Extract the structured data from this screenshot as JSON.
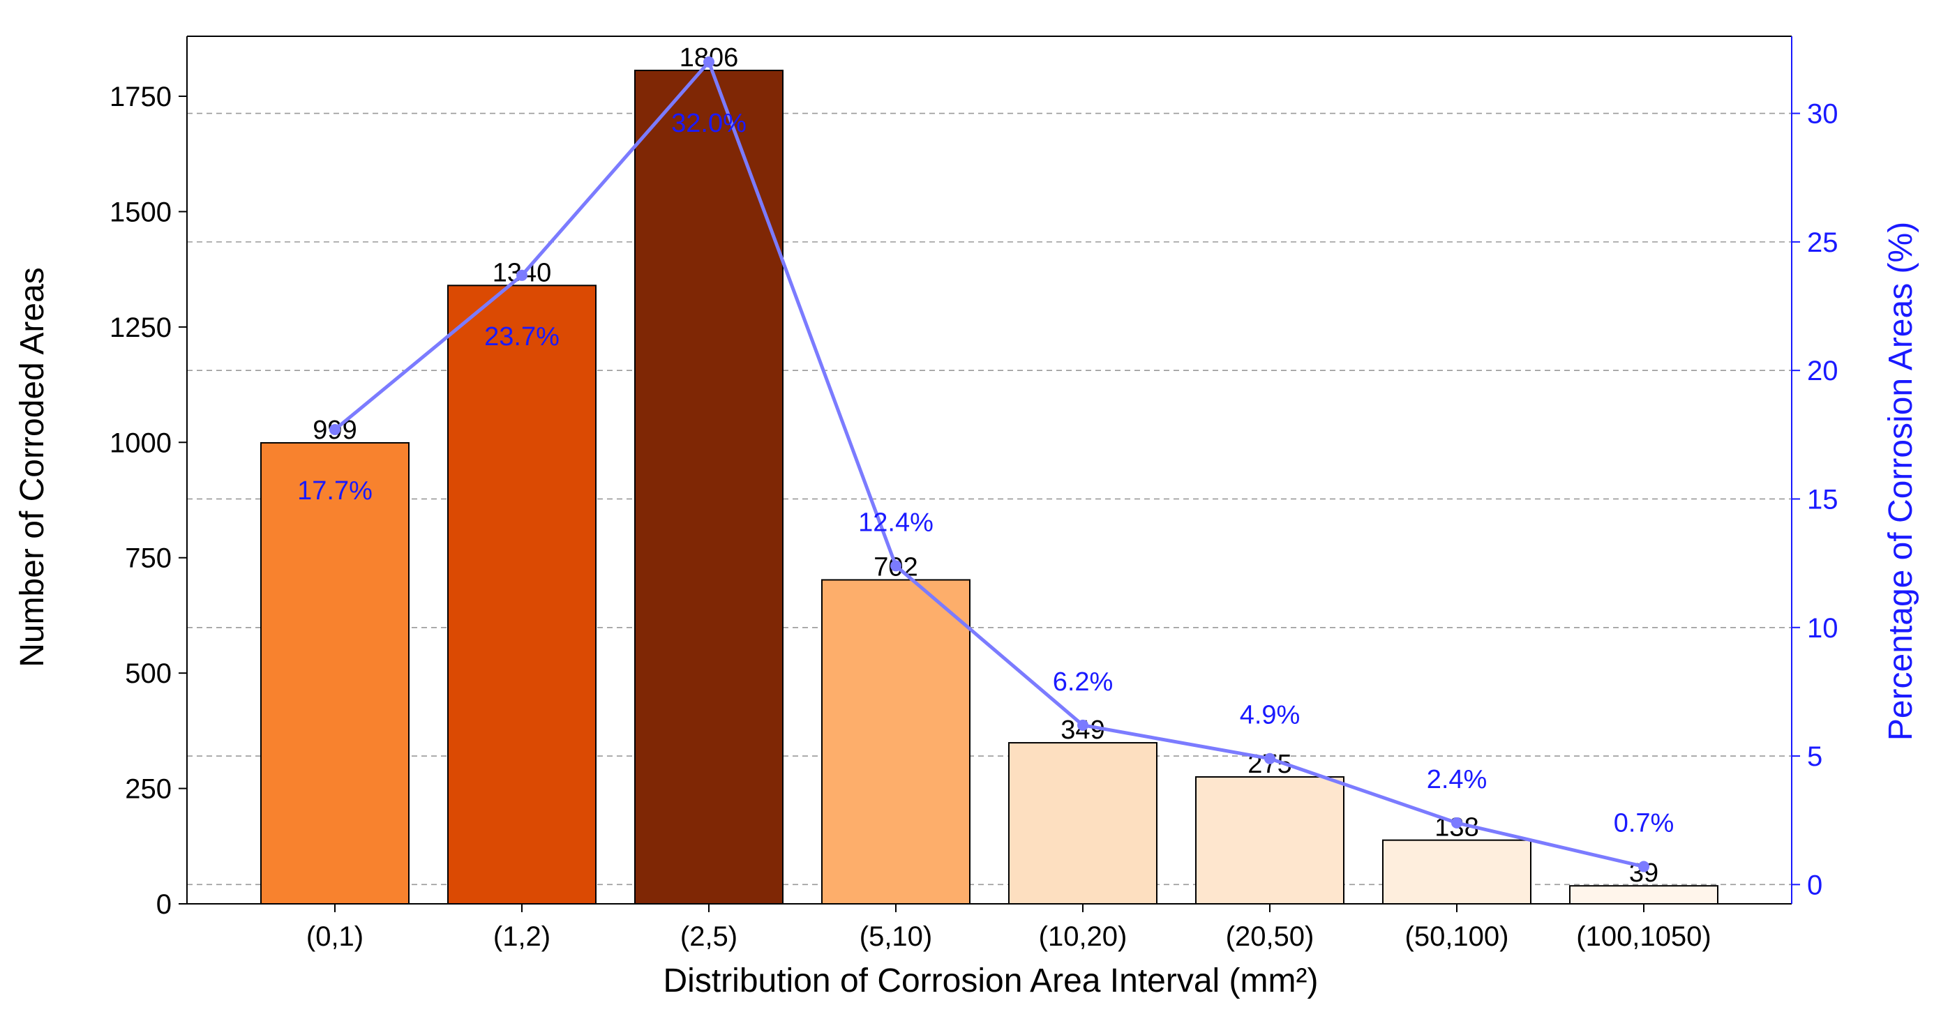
{
  "chart_data": {
    "type": "bar",
    "title": "",
    "xlabel": "Distribution of Corrosion Area Interval (mm²)",
    "ylabel": "Number of Corroded Areas",
    "y2label": "Percentage of Corrosion Areas (%)",
    "categories": [
      "(0,1)",
      "(1,2)",
      "(2,5)",
      "(5,10)",
      "(10,20)",
      "(20,50)",
      "(50,100)",
      "(100,1050)"
    ],
    "series": [
      {
        "name": "Number of Corroded Areas",
        "type": "bar",
        "axis": "left",
        "values": [
          999,
          1340,
          1806,
          702,
          349,
          275,
          138,
          39
        ],
        "value_labels": [
          "999",
          "1340",
          "1806",
          "702",
          "349",
          "275",
          "138",
          "39"
        ],
        "colors": [
          "#F8822E",
          "#DB4A03",
          "#7F2705",
          "#FDAE6B",
          "#FDDFC0",
          "#FEE6CE",
          "#FEEEDD",
          "#FFF5EB"
        ]
      },
      {
        "name": "Percentage of Corrosion Areas",
        "type": "line",
        "axis": "right",
        "values": [
          17.7,
          23.7,
          32.0,
          12.4,
          6.2,
          4.9,
          2.4,
          0.7
        ],
        "value_labels": [
          "17.7%",
          "23.7%",
          "32.0%",
          "12.4%",
          "6.2%",
          "4.9%",
          "2.4%",
          "0.7%"
        ],
        "color": "#7B7BFF",
        "label_color": "#1A1AFF"
      }
    ],
    "ylim": [
      0,
      1880
    ],
    "y2lim": [
      -0.75,
      33
    ],
    "yticks": [
      0,
      250,
      500,
      750,
      1000,
      1250,
      1500,
      1750
    ],
    "y2ticks": [
      0,
      5,
      10,
      15,
      20,
      25,
      30
    ],
    "grid": "horizontal dashed at right-axis ticks"
  }
}
